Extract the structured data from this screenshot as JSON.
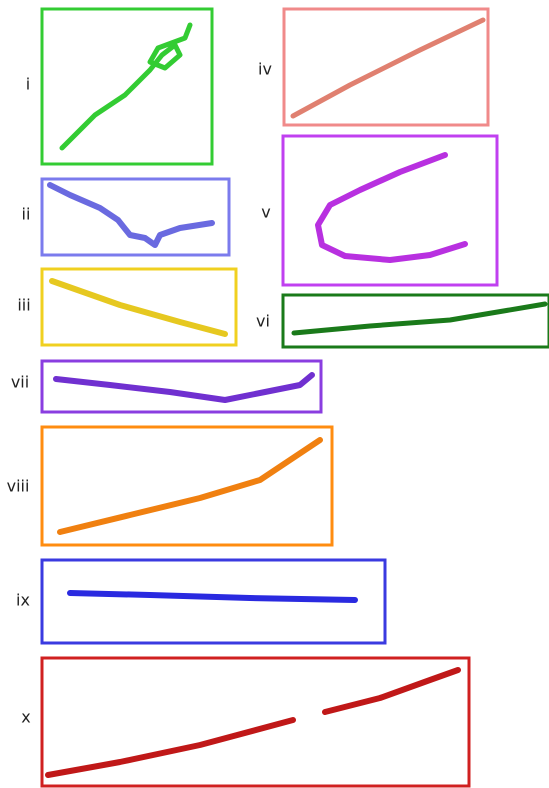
{
  "panels": [
    {
      "label": "i"
    },
    {
      "label": "ii"
    },
    {
      "label": "iii"
    },
    {
      "label": "iv"
    },
    {
      "label": "v"
    },
    {
      "label": "vi"
    },
    {
      "label": "vii"
    },
    {
      "label": "viii"
    },
    {
      "label": "ix"
    },
    {
      "label": "x"
    }
  ]
}
